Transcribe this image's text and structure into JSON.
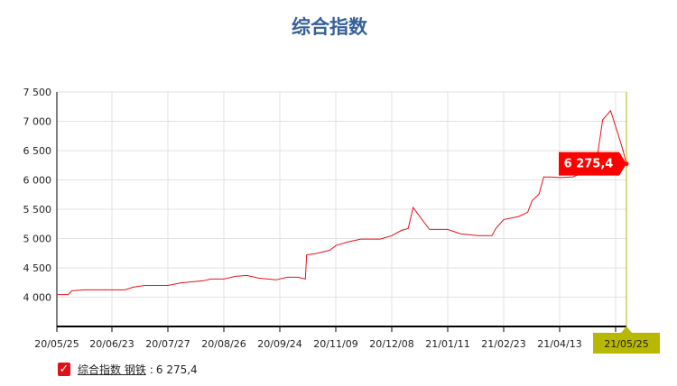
{
  "chart_data": {
    "type": "line",
    "title": "综合指数",
    "xlabel": "",
    "ylabel": "",
    "ylim": [
      3500,
      7500
    ],
    "yticks": [
      4000,
      4500,
      5000,
      5500,
      6000,
      6500,
      7000,
      7500
    ],
    "ytick_labels": [
      "4 000",
      "4 500",
      "5 000",
      "5 500",
      "6 000",
      "6 500",
      "7 000",
      "7 500"
    ],
    "grid": true,
    "xticks": [
      {
        "date": "2020-05-25",
        "label": "20/05/25"
      },
      {
        "date": "2020-06-23",
        "label": "20/06/23"
      },
      {
        "date": "2020-07-27",
        "label": "20/07/27"
      },
      {
        "date": "2020-08-26",
        "label": "20/08/26"
      },
      {
        "date": "2020-09-24",
        "label": "20/09/24"
      },
      {
        "date": "2020-11-09",
        "label": "20/11/09"
      },
      {
        "date": "2020-12-08",
        "label": "20/12/08"
      },
      {
        "date": "2021-01-11",
        "label": "21/01/11"
      },
      {
        "date": "2021-02-23",
        "label": "21/02/23"
      },
      {
        "date": "2021-04-13",
        "label": "21/04/13"
      },
      {
        "date": "2021-05-25",
        "label": "21/05/25"
      }
    ],
    "series": [
      {
        "name": "综合指数 钢铁",
        "color": "#e8101a",
        "points": [
          [
            "2020-05-25",
            4045
          ],
          [
            "2020-05-31",
            4045
          ],
          [
            "2020-06-02",
            4110
          ],
          [
            "2020-06-09",
            4125
          ],
          [
            "2020-06-23",
            4125
          ],
          [
            "2020-07-01",
            4125
          ],
          [
            "2020-07-06",
            4170
          ],
          [
            "2020-07-13",
            4200
          ],
          [
            "2020-07-27",
            4200
          ],
          [
            "2020-08-03",
            4245
          ],
          [
            "2020-08-15",
            4280
          ],
          [
            "2020-08-19",
            4310
          ],
          [
            "2020-08-26",
            4310
          ],
          [
            "2020-09-01",
            4355
          ],
          [
            "2020-09-07",
            4370
          ],
          [
            "2020-09-13",
            4325
          ],
          [
            "2020-09-22",
            4295
          ],
          [
            "2020-09-30",
            4340
          ],
          [
            "2020-10-09",
            4340
          ],
          [
            "2020-10-15",
            4310
          ],
          [
            "2020-10-16",
            4725
          ],
          [
            "2020-10-23",
            4740
          ],
          [
            "2020-11-04",
            4800
          ],
          [
            "2020-11-09",
            4880
          ],
          [
            "2020-11-15",
            4940
          ],
          [
            "2020-11-22",
            4990
          ],
          [
            "2020-12-02",
            4990
          ],
          [
            "2020-12-08",
            5050
          ],
          [
            "2020-12-14",
            5140
          ],
          [
            "2020-12-18",
            5170
          ],
          [
            "2020-12-21",
            5530
          ],
          [
            "2020-12-25",
            5375
          ],
          [
            "2020-12-31",
            5155
          ],
          [
            "2021-01-11",
            5155
          ],
          [
            "2021-01-21",
            5080
          ],
          [
            "2021-02-03",
            5050
          ],
          [
            "2021-02-14",
            5050
          ],
          [
            "2021-02-17",
            5170
          ],
          [
            "2021-02-23",
            5325
          ],
          [
            "2021-03-08",
            5375
          ],
          [
            "2021-03-16",
            5450
          ],
          [
            "2021-03-20",
            5650
          ],
          [
            "2021-03-26",
            5760
          ],
          [
            "2021-03-30",
            6050
          ],
          [
            "2021-04-05",
            6050
          ],
          [
            "2021-04-13",
            6040
          ],
          [
            "2021-04-21",
            6050
          ],
          [
            "2021-04-24",
            6080
          ],
          [
            "2021-05-07",
            6455
          ],
          [
            "2021-05-10",
            7025
          ],
          [
            "2021-05-15",
            7180
          ],
          [
            "2021-05-20",
            6760
          ],
          [
            "2021-05-23",
            6485
          ],
          [
            "2021-05-25",
            6275.4
          ]
        ]
      }
    ],
    "tooltip": {
      "value": "6 275,4",
      "date_label": "21/05/25",
      "color": "#ff0000",
      "crosshair_color": "#b8b800"
    },
    "legend": {
      "position": "bottom-left",
      "series_label": "综合指数 钢铁",
      "separator": ":",
      "value": "6 275,4",
      "checked": true
    }
  }
}
